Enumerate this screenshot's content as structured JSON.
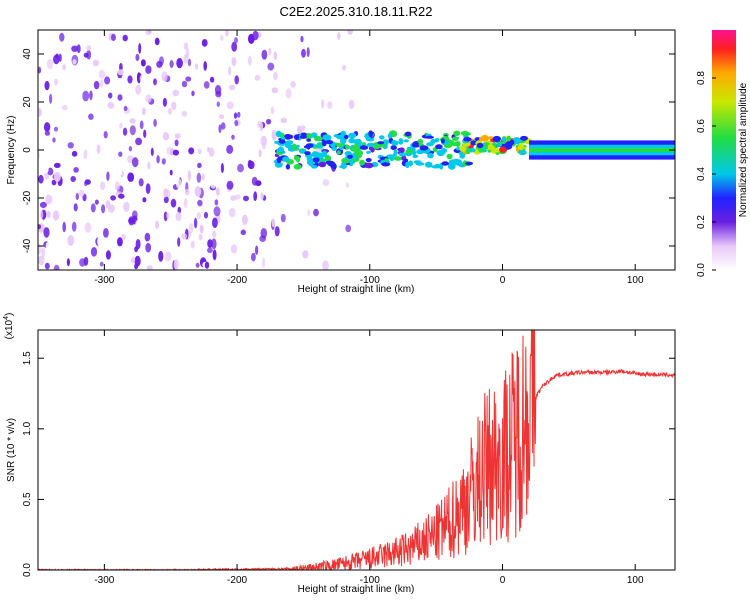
{
  "title": "C2E2.2025.310.18.11.R22",
  "chart_data": [
    {
      "type": "heatmap",
      "xlabel": "Height of straight line (km)",
      "ylabel": "Frequency (Hz)",
      "xlim": [
        -350,
        130
      ],
      "ylim": [
        -50,
        50
      ],
      "xticks": [
        -300,
        -200,
        -100,
        0,
        100
      ],
      "yticks": [
        -40,
        -20,
        0,
        20,
        40
      ],
      "colorbar": {
        "label": "Normalized spectral amplitude",
        "range": [
          0.0,
          1.0
        ],
        "ticks": [
          "0.0",
          "0.2",
          "0.4",
          "0.6",
          "0.8"
        ],
        "tick_values": [
          0.0,
          0.2,
          0.4,
          0.6,
          0.8
        ]
      },
      "regions": [
        {
          "name": "noise",
          "x_range": [
            -350,
            -170
          ],
          "freq_range": [
            -50,
            50
          ],
          "amplitude": 0.12
        },
        {
          "name": "fading-noise",
          "x_range": [
            -170,
            -110
          ],
          "freq_range": [
            -50,
            50
          ],
          "amplitude": 0.05
        },
        {
          "name": "signal-turbulent",
          "x_range": [
            -170,
            -25
          ],
          "freq_center": 0,
          "freq_halfwidth": 7,
          "amplitude": 0.35
        },
        {
          "name": "signal-peaks",
          "x_range": [
            -30,
            20
          ],
          "freq_center": 2,
          "freq_halfwidth": 3,
          "amplitude": 0.9
        },
        {
          "name": "signal-steady",
          "x_range": [
            20,
            130
          ],
          "freq_center": 0,
          "freq_halfwidth": 4,
          "amplitude": 0.45
        }
      ]
    },
    {
      "type": "line",
      "xlabel": "Height of straight line (km)",
      "ylabel": "SNR (10 * v/v)",
      "yscale_label": "(x10",
      "yscale_exp": "4",
      "xlim": [
        -350,
        130
      ],
      "ylim": [
        0,
        1.7
      ],
      "xticks": [
        -300,
        -200,
        -100,
        0,
        100
      ],
      "yticks": [
        "0.0",
        "0.5",
        "1.0",
        "1.5"
      ],
      "ytick_values": [
        0.0,
        0.5,
        1.0,
        1.5
      ],
      "series": [
        {
          "name": "SNR",
          "color": "#ee3333",
          "x": [
            -350,
            -250,
            -150,
            -130,
            -110,
            -90,
            -70,
            -50,
            -40,
            -30,
            -20,
            -15,
            -10,
            -5,
            0,
            5,
            10,
            20,
            30,
            40,
            60,
            80,
            90,
            100,
            130
          ],
          "y": [
            0.0,
            0.0,
            0.01,
            0.03,
            0.06,
            0.1,
            0.15,
            0.25,
            0.33,
            0.45,
            0.6,
            0.7,
            0.75,
            0.78,
            0.8,
            0.85,
            0.95,
            1.15,
            1.3,
            1.38,
            1.4,
            1.4,
            1.41,
            1.39,
            1.38
          ]
        }
      ],
      "line_color": "#ee3333"
    }
  ]
}
